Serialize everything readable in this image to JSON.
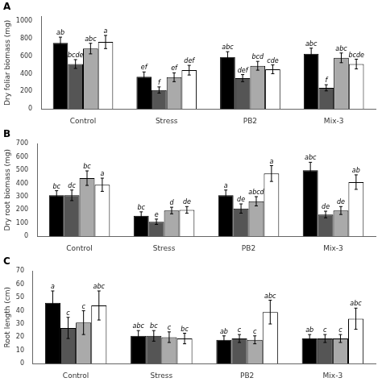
{
  "chart_data": [
    {
      "type": "bar",
      "title": "A",
      "ylabel": "Dry foliar biomass (mg)",
      "categories": [
        "Control",
        "Stress",
        "PB2",
        "Mix-3"
      ],
      "series": [
        {
          "color": "#000000",
          "values": [
            750,
            365,
            590,
            625
          ],
          "errors": [
            65,
            55,
            60,
            65
          ],
          "annotations": [
            "ab",
            "ef",
            "abc",
            "abc"
          ]
        },
        {
          "color": "#555555",
          "values": [
            510,
            215,
            350,
            240
          ],
          "errors": [
            50,
            35,
            40,
            35
          ],
          "annotations": [
            "bcde",
            "f",
            "def",
            "f"
          ]
        },
        {
          "color": "#aaaaaa",
          "values": [
            685,
            360,
            490,
            580
          ],
          "errors": [
            60,
            50,
            50,
            55
          ],
          "annotations": [
            "abc",
            "ef",
            "bcd",
            "abc"
          ]
        },
        {
          "color": "#ffffff",
          "values": [
            760,
            440,
            450,
            510
          ],
          "errors": [
            75,
            55,
            50,
            55
          ],
          "annotations": [
            "a",
            "def",
            "cde",
            "bcde"
          ]
        }
      ],
      "ylim": [
        0,
        1050
      ],
      "yticks": [
        0,
        200,
        400,
        600,
        800,
        1000
      ],
      "grid": false
    },
    {
      "type": "bar",
      "title": "B",
      "ylabel": "Dry root biomass (mg)",
      "categories": [
        "Control",
        "Stress",
        "PB2",
        "Mix-3"
      ],
      "series": [
        {
          "color": "#000000",
          "values": [
            310,
            155,
            310,
            500
          ],
          "errors": [
            35,
            30,
            40,
            60
          ],
          "annotations": [
            "bc",
            "bc",
            "a",
            "abc"
          ]
        },
        {
          "color": "#555555",
          "values": [
            310,
            110,
            210,
            165
          ],
          "errors": [
            40,
            20,
            35,
            25
          ],
          "annotations": [
            "dc",
            "e",
            "de",
            "de"
          ]
        },
        {
          "color": "#aaaaaa",
          "values": [
            440,
            195,
            265,
            195
          ],
          "errors": [
            55,
            25,
            35,
            30
          ],
          "annotations": [
            "bc",
            "d",
            "abcd",
            "de"
          ]
        },
        {
          "color": "#ffffff",
          "values": [
            390,
            200,
            475,
            410
          ],
          "errors": [
            50,
            25,
            60,
            55
          ],
          "annotations": [
            "a",
            "de",
            "a",
            "ab"
          ]
        }
      ],
      "ylim": [
        0,
        700
      ],
      "yticks": [
        0,
        100,
        200,
        300,
        400,
        500,
        600,
        700
      ],
      "grid": false
    },
    {
      "type": "bar",
      "title": "C",
      "ylabel": "Root length (cm)",
      "categories": [
        "Control",
        "Stress",
        "PB2",
        "Mix-3"
      ],
      "series": [
        {
          "color": "#000000",
          "values": [
            46,
            21,
            18,
            19
          ],
          "errors": [
            9,
            4,
            3,
            3
          ],
          "annotations": [
            "a",
            "abc",
            "ab",
            "ab"
          ]
        },
        {
          "color": "#555555",
          "values": [
            27,
            21,
            19,
            19
          ],
          "errors": [
            8,
            4,
            3,
            3
          ],
          "annotations": [
            "c",
            "bc",
            "c",
            "c"
          ]
        },
        {
          "color": "#aaaaaa",
          "values": [
            31,
            20,
            18,
            19
          ],
          "errors": [
            9,
            4,
            3,
            3
          ],
          "annotations": [
            "c",
            "c",
            "c",
            "c"
          ]
        },
        {
          "color": "#ffffff",
          "values": [
            44,
            19,
            39,
            34
          ],
          "errors": [
            11,
            4,
            9,
            8
          ],
          "annotations": [
            "abc",
            "bc",
            "abc",
            "abc"
          ]
        }
      ],
      "ylim": [
        0,
        70
      ],
      "yticks": [
        0,
        10,
        20,
        30,
        40,
        50,
        60,
        70
      ],
      "grid": false
    }
  ]
}
